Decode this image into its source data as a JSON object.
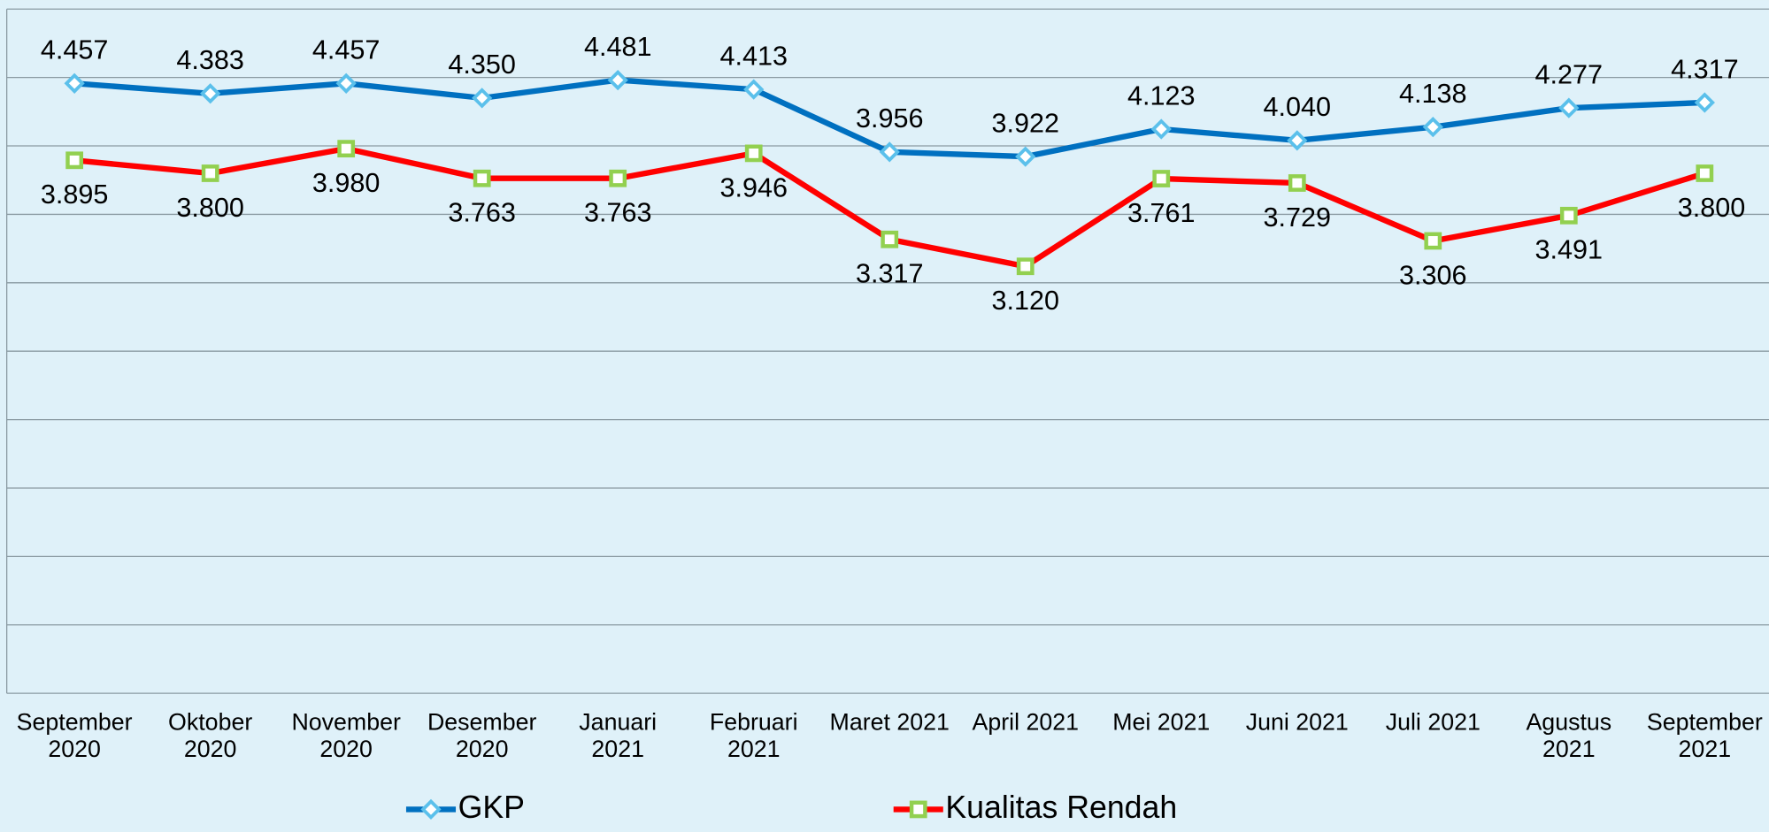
{
  "chart_data": {
    "type": "line",
    "categories": [
      "September 2020",
      "Oktober 2020",
      "November 2020",
      "Desember 2020",
      "Januari 2021",
      "Februari 2021",
      "Maret 2021",
      "April 2021",
      "Mei 2021",
      "Juni 2021",
      "Juli 2021",
      "Agustus 2021",
      "September 2021"
    ],
    "series": [
      {
        "name": "GKP",
        "color": "#0070c0",
        "values": [
          4457,
          4383,
          4457,
          4350,
          4481,
          4413,
          3956,
          3922,
          4123,
          4040,
          4138,
          4277,
          4317
        ],
        "value_labels": [
          "4.457",
          "4.383",
          "4.457",
          "4.350",
          "4.481",
          "4.413",
          "3.956",
          "3.922",
          "4.123",
          "4.040",
          "4.138",
          "4.277",
          "4.317"
        ]
      },
      {
        "name": "Kualitas Rendah",
        "color": "#ff0000",
        "values": [
          3895,
          3800,
          3980,
          3763,
          3763,
          3946,
          3317,
          3120,
          3761,
          3729,
          3306,
          3491,
          3800
        ],
        "value_labels": [
          "3.895",
          "3.800",
          "3.980",
          "3.763",
          "3.763",
          "3.946",
          "3.317",
          "3.120",
          "3.761",
          "3.729",
          "3.306",
          "3.491",
          "3.800"
        ]
      }
    ],
    "ylim": [
      0,
      5000
    ],
    "yticks": [
      0,
      500,
      1000,
      1500,
      2000,
      2500,
      3000,
      3500,
      4000,
      4500,
      5000
    ],
    "grid": true,
    "legend": "bottom"
  }
}
